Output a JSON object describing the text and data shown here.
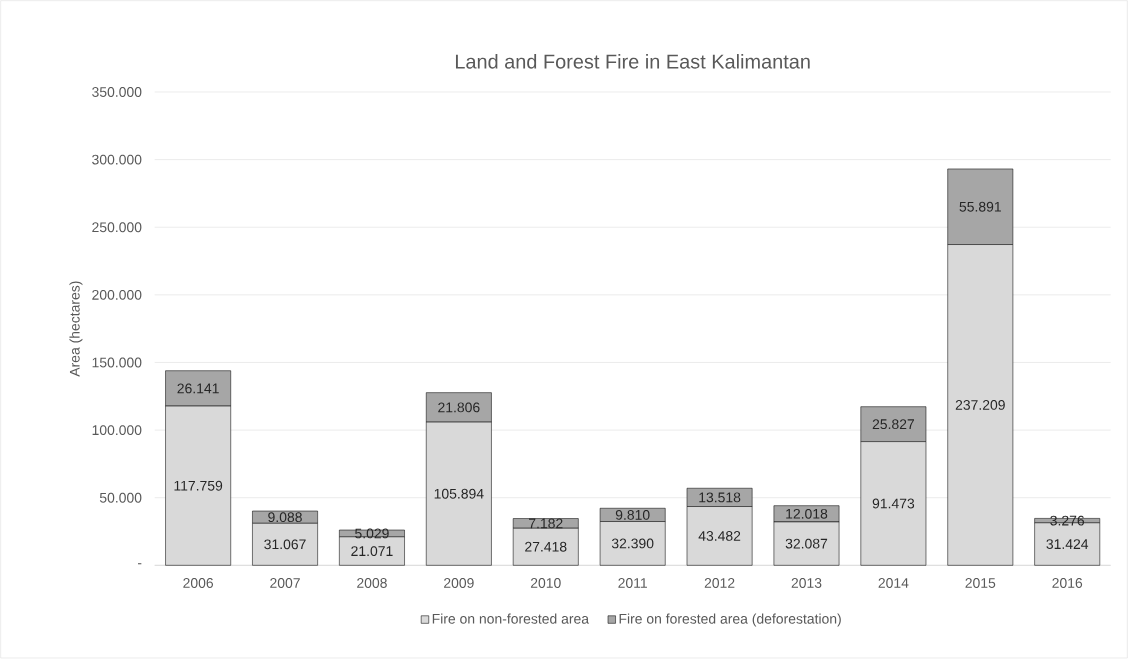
{
  "chart_data": {
    "type": "bar",
    "title": "Land and Forest Fire in East Kalimantan",
    "ylabel": "Area (hectares)",
    "categories": [
      "2006",
      "2007",
      "2008",
      "2009",
      "2010",
      "2011",
      "2012",
      "2013",
      "2014",
      "2015",
      "2016"
    ],
    "stacked": true,
    "grid": "y",
    "legend": "bottom",
    "ylim": [
      0,
      350000
    ],
    "yticks": [
      {
        "value": 0,
        "label": "-"
      },
      {
        "value": 50000,
        "label": "50.000"
      },
      {
        "value": 100000,
        "label": "100.000"
      },
      {
        "value": 150000,
        "label": "150.000"
      },
      {
        "value": 200000,
        "label": "200.000"
      },
      {
        "value": 250000,
        "label": "250.000"
      },
      {
        "value": 300000,
        "label": "300.000"
      },
      {
        "value": 350000,
        "label": "350.000"
      }
    ],
    "series": [
      {
        "name": "Fire on non-forested area",
        "color": "#d9d9d9",
        "values": [
          117759,
          31067,
          21071,
          105894,
          27418,
          32390,
          43482,
          32087,
          91473,
          237209,
          31424
        ],
        "value_labels": [
          "117.759",
          "31.067",
          "21.071",
          "105.894",
          "27.418",
          "32.390",
          "43.482",
          "32.087",
          "91.473",
          "237.209",
          "31.424"
        ]
      },
      {
        "name": "Fire on forested area (deforestation)",
        "color": "#a6a6a6",
        "values": [
          26141,
          9088,
          5029,
          21806,
          7182,
          9810,
          13518,
          12018,
          25827,
          55891,
          3276
        ],
        "value_labels": [
          "26.141",
          "9.088",
          "5.029",
          "21.806",
          "7.182",
          "9.810",
          "13.518",
          "12.018",
          "25.827",
          "55.891",
          "3.276"
        ]
      }
    ]
  }
}
